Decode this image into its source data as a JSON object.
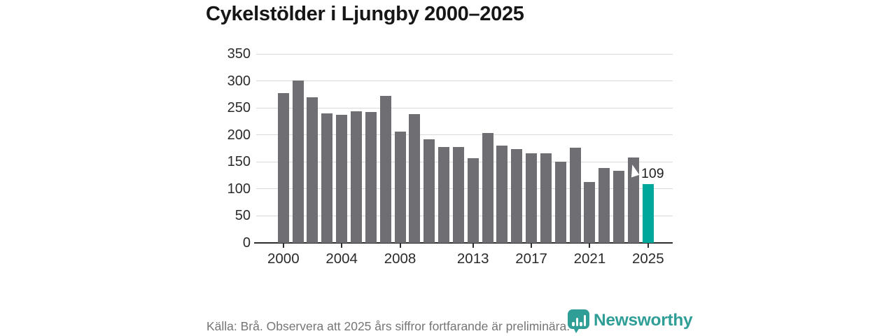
{
  "title": "Cykelstölder i Ljungby 2000–2025",
  "source_note": "Källa: Brå. Observera att 2025 års siffror fortfarande är preliminära.",
  "brand": {
    "name": "Newsworthy",
    "icon": "newsworthy-bar-chart-bubble-icon",
    "color": "#2f9e97"
  },
  "annotation": {
    "value_label": "109",
    "year": 2025
  },
  "colors": {
    "bar": "#6e6e73",
    "highlight": "#00a79b",
    "gridline": "#dadada",
    "axis": "#2e2e2e",
    "title_text": "#161616",
    "axis_text": "#2b2b2b",
    "muted_text": "#757575"
  },
  "chart_data": {
    "type": "bar",
    "title": "Cykelstölder i Ljungby 2000–2025",
    "x": [
      2000,
      2001,
      2002,
      2003,
      2004,
      2005,
      2006,
      2007,
      2008,
      2009,
      2010,
      2011,
      2012,
      2013,
      2014,
      2015,
      2016,
      2017,
      2018,
      2019,
      2020,
      2021,
      2022,
      2023,
      2024,
      2025
    ],
    "values": [
      277,
      301,
      270,
      240,
      237,
      244,
      242,
      272,
      206,
      238,
      192,
      178,
      178,
      157,
      203,
      180,
      174,
      166,
      166,
      151,
      176,
      113,
      139,
      134,
      158,
      109
    ],
    "highlight_year": 2025,
    "annotation": {
      "year": 2025,
      "label": "109"
    },
    "xlabel": "",
    "ylabel": "",
    "ylim": [
      0,
      350
    ],
    "yticks": [
      0,
      50,
      100,
      150,
      200,
      250,
      300,
      350
    ],
    "xticks": [
      2000,
      2004,
      2008,
      2013,
      2017,
      2021,
      2025
    ],
    "grid": "horizontal",
    "legend": "none"
  }
}
